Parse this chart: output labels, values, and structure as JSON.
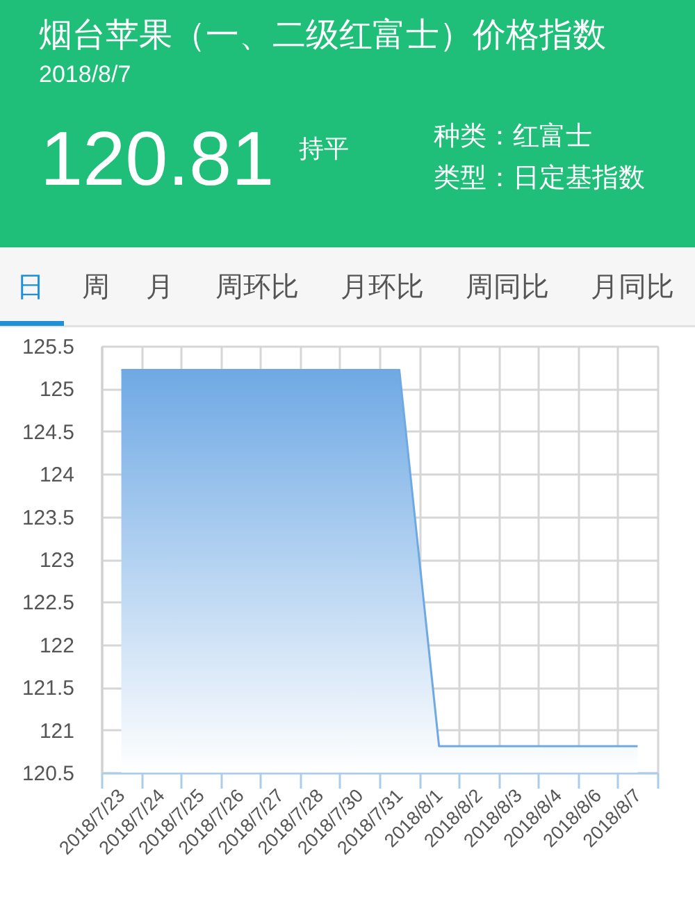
{
  "chart_data": {
    "type": "area",
    "title": "烟台苹果（一、二级红富士）价格指数",
    "subtitle": "2018/8/7",
    "annotations": [
      "120.81",
      "持平",
      "种类：红富士",
      "类型：日定基指数",
      "日",
      "周",
      "月",
      "周环比",
      "月环比",
      "周同比",
      "月同比"
    ],
    "categories": [
      "2018/7/23",
      "2018/7/24",
      "2018/7/25",
      "2018/7/26",
      "2018/7/27",
      "2018/7/28",
      "2018/7/30",
      "2018/7/31",
      "2018/8/1",
      "2018/8/2",
      "2018/8/3",
      "2018/8/4",
      "2018/8/6",
      "2018/8/7"
    ],
    "series": [
      {
        "color": "#6fa9e4",
        "values": [
          125.22,
          125.22,
          125.22,
          125.22,
          125.22,
          125.22,
          125.22,
          125.22,
          120.81,
          120.81,
          120.81,
          120.81,
          120.81,
          120.81
        ]
      }
    ],
    "ylim": [
      120.5,
      125.5
    ],
    "yticks": [
      120.5,
      121,
      121.5,
      122,
      122.5,
      123,
      123.5,
      124,
      124.5,
      125,
      125.5
    ],
    "grid": true
  }
}
